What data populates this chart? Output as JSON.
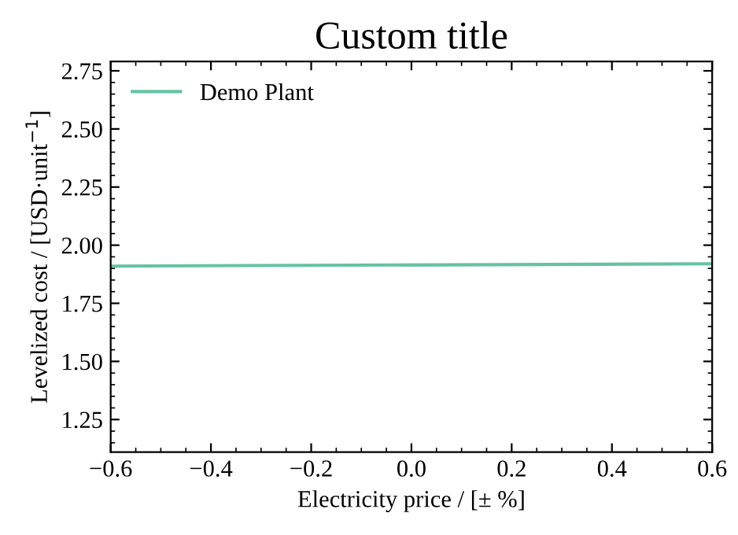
{
  "chart_data": {
    "type": "line",
    "title": "Custom title",
    "xlabel": "Electricity price / [± %]",
    "ylabel": "Levelized cost / [USD·unit$^{−1}$]",
    "x": [
      -0.6,
      0.6
    ],
    "series": [
      {
        "name": "Demo Plant",
        "color": "#66c2a5",
        "values": [
          1.91,
          1.92
        ]
      }
    ],
    "xlim": [
      -0.6,
      0.6
    ],
    "xticks": [
      {
        "value": -0.6,
        "label": "−0.6"
      },
      {
        "value": -0.4,
        "label": "−0.4"
      },
      {
        "value": -0.2,
        "label": "−0.2"
      },
      {
        "value": 0,
        "label": "0.0"
      },
      0.2,
      0.4,
      0.6
    ],
    "ylim": [
      1.11,
      2.79
    ],
    "yticks": [
      1.25,
      {
        "value": 1.5,
        "label": "1.50"
      },
      1.75,
      {
        "value": 2,
        "label": "2.00"
      },
      2.25,
      {
        "value": 2.5,
        "label": "2.50"
      },
      2.75
    ],
    "grid": false,
    "legend": "top left",
    "marker": "none",
    "line_style": "solid"
  }
}
